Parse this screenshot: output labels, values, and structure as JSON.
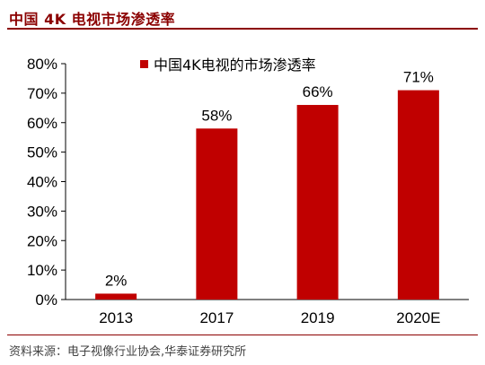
{
  "header": {
    "title": "中国 4K 电视市场渗透率"
  },
  "footer": {
    "source": "资料来源：电子视像行业协会,华泰证券研究所"
  },
  "chart_data": {
    "type": "bar",
    "title": "中国 4K 电视市场渗透率",
    "categories": [
      "2013",
      "2017",
      "2019",
      "2020E"
    ],
    "series": [
      {
        "name": "中国4K电视的市场渗透率",
        "values": [
          2,
          58,
          66,
          71
        ],
        "color": "#C00000"
      }
    ],
    "data_labels": [
      "2%",
      "58%",
      "66%",
      "71%"
    ],
    "yticks": [
      "0%",
      "10%",
      "20%",
      "30%",
      "40%",
      "50%",
      "60%",
      "70%",
      "80%"
    ],
    "ylim": [
      0,
      80
    ],
    "ylabel": "",
    "xlabel": "",
    "grid": false,
    "legend_position": "top"
  }
}
